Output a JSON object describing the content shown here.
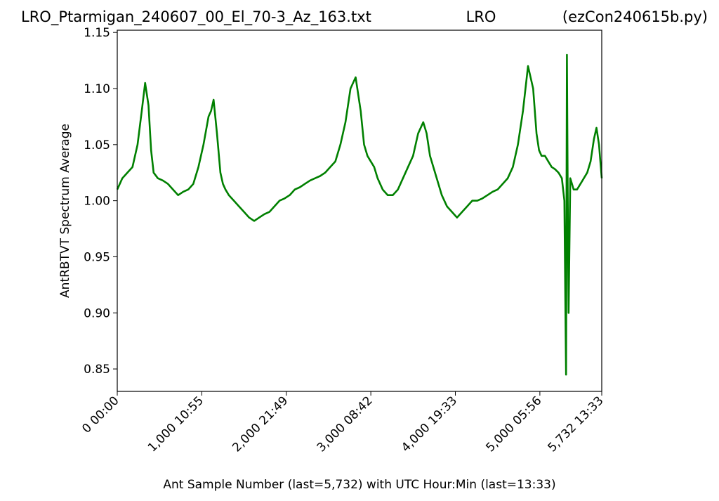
{
  "chart_data": {
    "type": "line",
    "title_left": "LRO_Ptarmigan_240607_00_El_70-3_Az_163.txt",
    "title_center": "LRO",
    "title_right": "(ezCon240615b.py)",
    "xlabel": "Ant Sample Number (last=5,732) with UTC Hour:Min (last=13:33)",
    "ylabel": "AntRBTVT Spectrum Average",
    "xlim": [
      0,
      5732
    ],
    "ylim": [
      0.83,
      1.152
    ],
    "x_ticks": [
      {
        "value": 0,
        "label": "0  00:00"
      },
      {
        "value": 1000,
        "label": "1,000  10:55"
      },
      {
        "value": 2000,
        "label": "2,000  21:49"
      },
      {
        "value": 3000,
        "label": "3,000  08:42"
      },
      {
        "value": 4000,
        "label": "4,000  19:33"
      },
      {
        "value": 5000,
        "label": "5,000  05:56"
      },
      {
        "value": 5732,
        "label": "5,732  13:33"
      }
    ],
    "y_ticks": [
      {
        "value": 0.85,
        "label": "0.85"
      },
      {
        "value": 0.9,
        "label": "0.90"
      },
      {
        "value": 0.95,
        "label": "0.95"
      },
      {
        "value": 1.0,
        "label": "1.00"
      },
      {
        "value": 1.05,
        "label": "1.05"
      },
      {
        "value": 1.1,
        "label": "1.10"
      },
      {
        "value": 1.15,
        "label": "1.15"
      }
    ],
    "grid": false,
    "legend": "none",
    "series": [
      {
        "color": "#008000",
        "x": [
          0,
          60,
          120,
          180,
          240,
          290,
          330,
          370,
          400,
          430,
          480,
          540,
          600,
          660,
          720,
          780,
          840,
          900,
          960,
          1020,
          1080,
          1110,
          1140,
          1180,
          1220,
          1250,
          1280,
          1320,
          1380,
          1440,
          1500,
          1560,
          1620,
          1680,
          1740,
          1800,
          1860,
          1920,
          1980,
          2040,
          2100,
          2160,
          2220,
          2280,
          2340,
          2400,
          2460,
          2520,
          2580,
          2640,
          2700,
          2760,
          2820,
          2880,
          2920,
          2960,
          3000,
          3040,
          3080,
          3140,
          3200,
          3260,
          3320,
          3380,
          3440,
          3500,
          3560,
          3620,
          3660,
          3700,
          3740,
          3780,
          3840,
          3900,
          3960,
          4020,
          4080,
          4140,
          4200,
          4260,
          4320,
          4380,
          4440,
          4500,
          4560,
          4620,
          4680,
          4740,
          4800,
          4860,
          4920,
          4960,
          4990,
          5020,
          5060,
          5100,
          5140,
          5180,
          5220,
          5260,
          5290,
          5300,
          5310,
          5320,
          5330,
          5340,
          5360,
          5400,
          5440,
          5480,
          5520,
          5560,
          5600,
          5640,
          5670,
          5700,
          5732
        ],
        "y": [
          1.01,
          1.02,
          1.025,
          1.03,
          1.05,
          1.08,
          1.105,
          1.085,
          1.045,
          1.025,
          1.02,
          1.018,
          1.015,
          1.01,
          1.005,
          1.008,
          1.01,
          1.015,
          1.03,
          1.05,
          1.075,
          1.08,
          1.09,
          1.06,
          1.025,
          1.015,
          1.01,
          1.005,
          1.0,
          0.995,
          0.99,
          0.985,
          0.982,
          0.985,
          0.988,
          0.99,
          0.995,
          1.0,
          1.002,
          1.005,
          1.01,
          1.012,
          1.015,
          1.018,
          1.02,
          1.022,
          1.025,
          1.03,
          1.035,
          1.05,
          1.07,
          1.1,
          1.11,
          1.08,
          1.05,
          1.04,
          1.035,
          1.03,
          1.02,
          1.01,
          1.005,
          1.005,
          1.01,
          1.02,
          1.03,
          1.04,
          1.06,
          1.07,
          1.06,
          1.04,
          1.03,
          1.02,
          1.005,
          0.995,
          0.99,
          0.985,
          0.99,
          0.995,
          1.0,
          1.0,
          1.002,
          1.005,
          1.008,
          1.01,
          1.015,
          1.02,
          1.03,
          1.05,
          1.08,
          1.12,
          1.1,
          1.06,
          1.045,
          1.04,
          1.04,
          1.035,
          1.03,
          1.028,
          1.025,
          1.02,
          1.0,
          0.92,
          0.845,
          1.13,
          1.0,
          0.9,
          1.02,
          1.01,
          1.01,
          1.015,
          1.02,
          1.025,
          1.035,
          1.055,
          1.065,
          1.05,
          1.02
        ]
      }
    ]
  }
}
